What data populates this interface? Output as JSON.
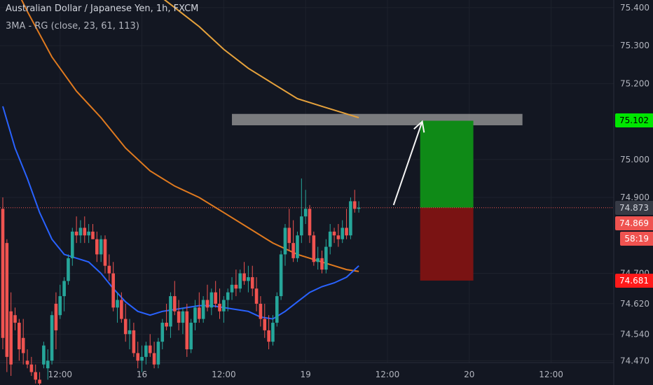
{
  "header": {
    "title": "Australian Dollar / Japanese Yen, 1h, FXCM",
    "indicator": "3MA - RG (close, 23, 61, 113)"
  },
  "colors": {
    "background": "#131722",
    "grid": "#1e222d",
    "up": "#26a69a",
    "down": "#ef5350",
    "ma_fast": "#2962ff",
    "ma_mid": "#e07a1f",
    "ma_slow": "#e6a23c",
    "zone": "#9e9e9e",
    "target": "#0f8a17",
    "stop": "#7a1313",
    "arrow": "#f5f5f5",
    "target_label": "#00e600",
    "stop_label": "#ff1a1a"
  },
  "chart_data": {
    "type": "candlestick",
    "title": "Australian Dollar / Japanese Yen, 1h, FXCM",
    "ylim": [
      74.465,
      75.42
    ],
    "y_ticks": [
      "75.400",
      "75.300",
      "75.200",
      "75.000",
      "74.900",
      "74.700",
      "74.620",
      "74.540",
      "74.470"
    ],
    "x_ticks": [
      "12:00",
      "16",
      "12:00",
      "19",
      "12:00",
      "20",
      "12:00"
    ],
    "x_tick_index": [
      14,
      34,
      54,
      74,
      94,
      114,
      134
    ],
    "n_slots": 150,
    "candles": [
      [
        74.87,
        74.9,
        74.5,
        74.53
      ],
      [
        74.78,
        74.79,
        74.44,
        74.48
      ],
      [
        74.6,
        74.65,
        74.43,
        74.46
      ],
      [
        74.59,
        74.61,
        74.55,
        74.57
      ],
      [
        74.57,
        74.58,
        74.47,
        74.5
      ],
      [
        74.53,
        74.58,
        74.46,
        74.49
      ],
      [
        74.47,
        74.5,
        74.45,
        74.46
      ],
      [
        74.46,
        74.48,
        74.43,
        74.44
      ],
      [
        74.44,
        74.46,
        74.41,
        74.42
      ],
      [
        74.42,
        74.44,
        74.4,
        74.41
      ],
      [
        74.46,
        74.52,
        74.45,
        74.51
      ],
      [
        74.45,
        74.5,
        74.42,
        74.47
      ],
      [
        74.47,
        74.6,
        74.46,
        74.59
      ],
      [
        74.62,
        74.65,
        74.5,
        74.55
      ],
      [
        74.59,
        74.67,
        74.58,
        74.64
      ],
      [
        74.64,
        74.69,
        74.6,
        74.68
      ],
      [
        74.68,
        74.75,
        74.67,
        74.74
      ],
      [
        74.74,
        74.82,
        74.72,
        74.81
      ],
      [
        74.81,
        74.85,
        74.78,
        74.8
      ],
      [
        74.8,
        74.84,
        74.78,
        74.82
      ],
      [
        74.82,
        74.85,
        74.78,
        74.8
      ],
      [
        74.8,
        74.83,
        74.78,
        74.81
      ],
      [
        74.81,
        74.83,
        74.79,
        74.79
      ],
      [
        74.79,
        74.81,
        74.73,
        74.75
      ],
      [
        74.75,
        74.8,
        74.73,
        74.79
      ],
      [
        74.79,
        74.8,
        74.7,
        74.72
      ],
      [
        74.72,
        74.75,
        74.68,
        74.7
      ],
      [
        74.7,
        74.73,
        74.6,
        74.61
      ],
      [
        74.61,
        74.65,
        74.57,
        74.63
      ],
      [
        74.63,
        74.65,
        74.57,
        74.58
      ],
      [
        74.58,
        74.62,
        74.52,
        74.54
      ],
      [
        74.54,
        74.58,
        74.5,
        74.55
      ],
      [
        74.55,
        74.57,
        74.48,
        74.49
      ],
      [
        74.49,
        74.52,
        74.45,
        74.47
      ],
      [
        74.47,
        74.51,
        74.44,
        74.48
      ],
      [
        74.48,
        74.52,
        74.46,
        74.51
      ],
      [
        74.51,
        74.54,
        74.48,
        74.49
      ],
      [
        74.49,
        74.52,
        74.45,
        74.46
      ],
      [
        74.46,
        74.53,
        74.45,
        74.52
      ],
      [
        74.52,
        74.58,
        74.5,
        74.57
      ],
      [
        74.57,
        74.62,
        74.55,
        74.56
      ],
      [
        74.56,
        74.65,
        74.53,
        74.64
      ],
      [
        74.64,
        74.68,
        74.59,
        74.6
      ],
      [
        74.6,
        74.63,
        74.55,
        74.57
      ],
      [
        74.57,
        74.61,
        74.54,
        74.6
      ],
      [
        74.6,
        74.62,
        74.48,
        74.5
      ],
      [
        74.5,
        74.58,
        74.49,
        74.57
      ],
      [
        74.57,
        74.63,
        74.55,
        74.61
      ],
      [
        74.61,
        74.65,
        74.57,
        74.58
      ],
      [
        74.58,
        74.64,
        74.57,
        74.63
      ],
      [
        74.63,
        74.67,
        74.6,
        74.61
      ],
      [
        74.61,
        74.66,
        74.59,
        74.65
      ],
      [
        74.65,
        74.68,
        74.61,
        74.62
      ],
      [
        74.62,
        74.66,
        74.58,
        74.6
      ],
      [
        74.6,
        74.64,
        74.57,
        74.63
      ],
      [
        74.63,
        74.66,
        74.6,
        74.65
      ],
      [
        74.65,
        74.69,
        74.63,
        74.67
      ],
      [
        74.67,
        74.71,
        74.64,
        74.66
      ],
      [
        74.66,
        74.71,
        74.65,
        74.7
      ],
      [
        74.7,
        74.73,
        74.67,
        74.68
      ],
      [
        74.68,
        74.72,
        74.65,
        74.69
      ],
      [
        74.69,
        74.72,
        74.64,
        74.66
      ],
      [
        74.66,
        74.69,
        74.6,
        74.62
      ],
      [
        74.62,
        74.64,
        74.56,
        74.58
      ],
      [
        74.58,
        74.62,
        74.53,
        74.55
      ],
      [
        74.55,
        74.59,
        74.5,
        74.52
      ],
      [
        74.52,
        74.59,
        74.51,
        74.57
      ],
      [
        74.57,
        74.65,
        74.56,
        74.64
      ],
      [
        74.64,
        74.76,
        74.63,
        74.75
      ],
      [
        74.75,
        74.83,
        74.72,
        74.82
      ],
      [
        74.82,
        74.87,
        74.76,
        74.78
      ],
      [
        74.78,
        74.84,
        74.73,
        74.74
      ],
      [
        74.74,
        74.81,
        74.73,
        74.8
      ],
      [
        74.8,
        74.95,
        74.78,
        74.85
      ],
      [
        74.85,
        74.92,
        74.83,
        74.87
      ],
      [
        74.87,
        74.88,
        74.78,
        74.8
      ],
      [
        74.8,
        74.81,
        74.72,
        74.73
      ],
      [
        74.73,
        74.77,
        74.71,
        74.74
      ],
      [
        74.74,
        74.76,
        74.7,
        74.71
      ],
      [
        74.71,
        74.79,
        74.7,
        74.77
      ],
      [
        74.77,
        74.83,
        74.75,
        74.81
      ],
      [
        74.81,
        74.82,
        74.78,
        74.8
      ],
      [
        74.8,
        74.83,
        74.77,
        74.79
      ],
      [
        74.79,
        74.84,
        74.78,
        74.82
      ],
      [
        74.82,
        74.87,
        74.79,
        74.8
      ],
      [
        74.8,
        74.9,
        74.79,
        74.89
      ],
      [
        74.89,
        74.92,
        74.86,
        74.87
      ],
      [
        74.87,
        74.89,
        74.86,
        74.873
      ]
    ],
    "ma_fast": [
      [
        0,
        75.14
      ],
      [
        3,
        75.03
      ],
      [
        6,
        74.95
      ],
      [
        9,
        74.86
      ],
      [
        12,
        74.79
      ],
      [
        15,
        74.75
      ],
      [
        18,
        74.74
      ],
      [
        21,
        74.73
      ],
      [
        24,
        74.7
      ],
      [
        27,
        74.66
      ],
      [
        30,
        74.625
      ],
      [
        33,
        74.6
      ],
      [
        36,
        74.59
      ],
      [
        39,
        74.6
      ],
      [
        42,
        74.605
      ],
      [
        45,
        74.61
      ],
      [
        48,
        74.615
      ],
      [
        51,
        74.615
      ],
      [
        54,
        74.61
      ],
      [
        57,
        74.605
      ],
      [
        60,
        74.6
      ],
      [
        63,
        74.585
      ],
      [
        66,
        74.58
      ],
      [
        69,
        74.6
      ],
      [
        72,
        74.625
      ],
      [
        75,
        74.65
      ],
      [
        78,
        74.665
      ],
      [
        81,
        74.675
      ],
      [
        84,
        74.69
      ],
      [
        87,
        74.72
      ]
    ],
    "ma_mid": [
      [
        0,
        75.52
      ],
      [
        6,
        75.39
      ],
      [
        12,
        75.27
      ],
      [
        18,
        75.18
      ],
      [
        24,
        75.11
      ],
      [
        30,
        75.03
      ],
      [
        36,
        74.97
      ],
      [
        42,
        74.93
      ],
      [
        48,
        74.9
      ],
      [
        54,
        74.86
      ],
      [
        60,
        74.82
      ],
      [
        66,
        74.78
      ],
      [
        72,
        74.75
      ],
      [
        78,
        74.73
      ],
      [
        84,
        74.71
      ],
      [
        87,
        74.705
      ]
    ],
    "ma_slow": [
      [
        36,
        75.45
      ],
      [
        42,
        75.4
      ],
      [
        48,
        75.35
      ],
      [
        54,
        75.29
      ],
      [
        60,
        75.24
      ],
      [
        66,
        75.2
      ],
      [
        72,
        75.16
      ],
      [
        78,
        75.14
      ],
      [
        84,
        75.12
      ],
      [
        87,
        75.11
      ]
    ],
    "zone": {
      "from": 56,
      "to": 127,
      "top": 75.12,
      "bottom": 75.09
    },
    "position": {
      "from": 102,
      "to": 115,
      "target": 75.102,
      "entry": 74.873,
      "stop": 74.681
    },
    "arrow": {
      "from": [
        95.5,
        74.88
      ],
      "to": [
        102.5,
        75.1
      ]
    },
    "current_price": 74.873,
    "price_labels": {
      "target": "75.102",
      "current": "74.873",
      "last": "74.869",
      "countdown": "58:19",
      "stop": "74.681"
    }
  }
}
